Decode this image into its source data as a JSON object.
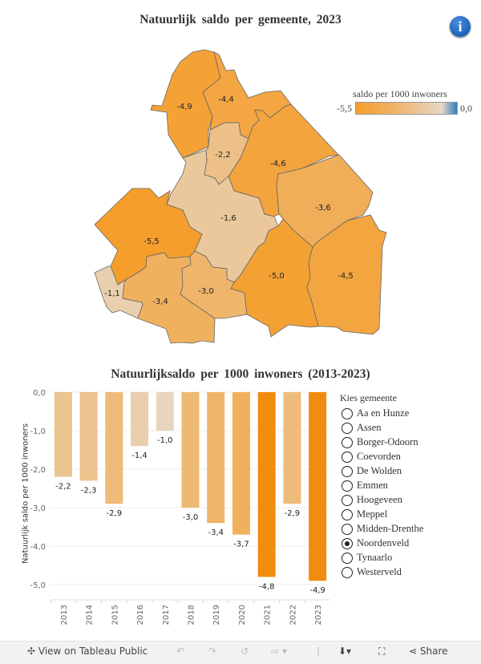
{
  "map": {
    "title": "Natuurlijk saldo per gemeente, 2023",
    "legend_title": "saldo per 1000 inwoners",
    "legend_min": "-5,5",
    "legend_max": "0,0",
    "color_range": {
      "min": -5.5,
      "max": 0.0,
      "min_color": "#f59e2c",
      "mid_color": "#e6d8c6",
      "max_color": "#2f7fc1"
    },
    "regions": [
      {
        "name": "Noordenveld",
        "value": -4.9,
        "label": "-4,9"
      },
      {
        "name": "Tynaarlo",
        "value": -4.4,
        "label": "-4,4"
      },
      {
        "name": "Assen",
        "value": -2.2,
        "label": "-2,2"
      },
      {
        "name": "Aa en Hunze",
        "value": -4.6,
        "label": "-4,6"
      },
      {
        "name": "Midden-Drenthe",
        "value": -1.6,
        "label": "-1,6"
      },
      {
        "name": "Borger-Odoorn",
        "value": -3.6,
        "label": "-3,6"
      },
      {
        "name": "Westerveld",
        "value": -5.5,
        "label": "-5,5"
      },
      {
        "name": "Meppel",
        "value": -1.1,
        "label": "-1,1"
      },
      {
        "name": "De Wolden",
        "value": -3.4,
        "label": "-3,4"
      },
      {
        "name": "Hoogeveen",
        "value": -3.0,
        "label": "-3,0"
      },
      {
        "name": "Coevorden",
        "value": -5.0,
        "label": "-5,0"
      },
      {
        "name": "Emmen",
        "value": -4.5,
        "label": "-4,5"
      }
    ],
    "info_icon": "info-icon"
  },
  "chart_data": {
    "type": "bar",
    "title": "Natuurlijksaldo per 1000 inwoners (2013-2023)",
    "xlabel": "",
    "ylabel": "Natuurlijk saldo per 1000 inwoners",
    "categories": [
      "2013",
      "2014",
      "2015",
      "2016",
      "2017",
      "2018",
      "2019",
      "2020",
      "2021",
      "2022",
      "2023"
    ],
    "values": [
      -2.2,
      -2.3,
      -2.9,
      -1.4,
      -1.0,
      -3.0,
      -3.4,
      -3.7,
      -4.8,
      -2.9,
      -4.9
    ],
    "data_labels": [
      "-2,2",
      "-2,3",
      "-2,9",
      "-1,4",
      "-1,0",
      "-3,0",
      "-3,4",
      "-3,7",
      "-4,8",
      "-2,9",
      "-4,9"
    ],
    "ylim": [
      -5.4,
      0
    ],
    "yticks": [
      0,
      -1,
      -2,
      -3,
      -4,
      -5
    ],
    "ytick_labels": [
      "0,0",
      "-1,0",
      "-2,0",
      "-3,0",
      "-4,0",
      "-5,0"
    ],
    "grid": true,
    "color_range": {
      "min": -5.5,
      "max": 0.0
    }
  },
  "filter": {
    "title": "Kies gemeente",
    "options": [
      "Aa en Hunze",
      "Assen",
      "Borger-Odoorn",
      "Coevorden",
      "De Wolden",
      "Emmen",
      "Hoogeveen",
      "Meppel",
      "Midden-Drenthe",
      "Noordenveld",
      "Tynaarlo",
      "Westerveld"
    ],
    "selected": "Noordenveld"
  },
  "footer": {
    "view_label": "View on Tableau Public",
    "share_label": "Share"
  }
}
